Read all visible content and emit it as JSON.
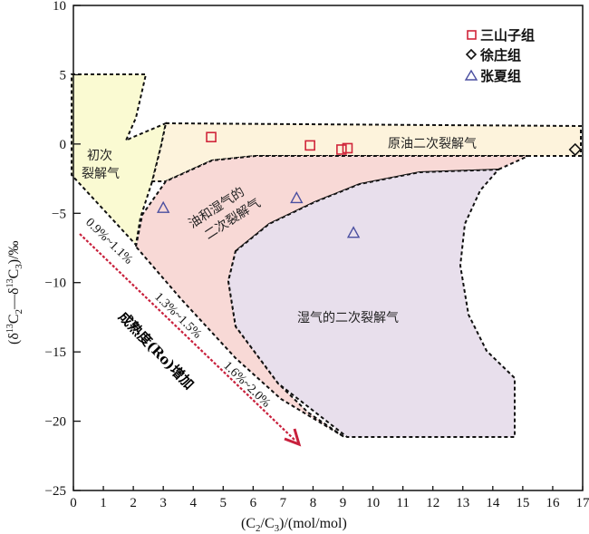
{
  "chart_data": {
    "type": "scatter",
    "title": "",
    "xlabel": {
      "open": "(C",
      "sub1": "2",
      "mid": "/C",
      "sub2": "3",
      "close": ")/(mol/mol)"
    },
    "ylabel": {
      "open": "(δ",
      "sup1": "13",
      "c1": "C",
      "sub1": "2",
      "dash": "—δ",
      "sup2": "13",
      "c2": "C",
      "sub2": "3",
      "close": ")/‰"
    },
    "xlim": [
      0,
      17
    ],
    "ylim": [
      -25,
      10
    ],
    "xticks": [
      "0",
      "1",
      "2",
      "3",
      "4",
      "5",
      "6",
      "7",
      "8",
      "9",
      "10",
      "11",
      "12",
      "13",
      "14",
      "15",
      "16",
      "17"
    ],
    "yticks": [
      "10",
      "5",
      "0",
      "−5",
      "−10",
      "−15",
      "−20",
      "−25"
    ],
    "ytick_values": [
      10,
      5,
      0,
      -5,
      -10,
      -15,
      -20,
      -25
    ],
    "grid": false,
    "legend_position": "top-right",
    "series": [
      {
        "name": "三山子组",
        "marker": "square",
        "color": "#d0253a",
        "points": [
          [
            4.6,
            0.5
          ],
          [
            7.9,
            -0.1
          ],
          [
            8.95,
            -0.4
          ],
          [
            9.15,
            -0.3
          ]
        ]
      },
      {
        "name": "徐庄组",
        "marker": "diamond",
        "color": "#111111",
        "points": [
          [
            16.75,
            -0.4
          ]
        ]
      },
      {
        "name": "张夏组",
        "marker": "triangle",
        "color": "#4a4fa0",
        "points": [
          [
            3.0,
            -4.6
          ],
          [
            7.45,
            -3.9
          ],
          [
            9.35,
            -6.4
          ]
        ]
      }
    ],
    "regions": [
      {
        "name": "primary",
        "label_lines": [
          "初次",
          "裂解气"
        ],
        "color": "#fafad2"
      },
      {
        "name": "crude-oil",
        "label_lines": [
          "原油二次裂解气"
        ],
        "color": "#fdf3dc"
      },
      {
        "name": "oil-wetgas",
        "label_lines": [
          "油和湿气的",
          "二次裂解气"
        ],
        "color": "#f8d9d6"
      },
      {
        "name": "wetgas",
        "label_lines": [
          "湿气的二次裂解气"
        ],
        "color": "#e8dfec"
      }
    ],
    "annotations": {
      "ro_ranges": [
        "0.9%~1.1%",
        "1.3%~1.5%",
        "1.6%~2.0%"
      ],
      "maturity_arrow": "成熟度(Ro)增加",
      "arrow_color": "#c8203c"
    }
  }
}
